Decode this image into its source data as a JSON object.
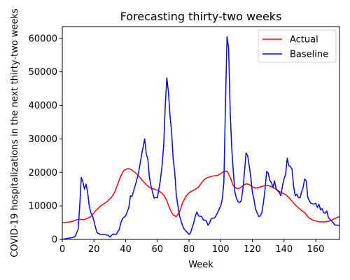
{
  "chart_data": {
    "type": "line",
    "title": "Forecasting thirty-two weeks",
    "xlabel": "Week",
    "ylabel": "COVID-19 hospitalizations in the next thirty-two weeks",
    "xlim": [
      0,
      175
    ],
    "ylim": [
      0,
      63500
    ],
    "xticks": [
      0,
      20,
      40,
      60,
      80,
      100,
      120,
      140,
      160
    ],
    "yticks": [
      0,
      10000,
      20000,
      30000,
      40000,
      50000,
      60000
    ],
    "legend_position": "top-right",
    "grid": false,
    "series": [
      {
        "name": "Actual",
        "color": "#ff0000",
        "points": [
          [
            0,
            5000
          ],
          [
            5,
            5200
          ],
          [
            10,
            6000
          ],
          [
            14,
            5900
          ],
          [
            18,
            6800
          ],
          [
            21,
            8500
          ],
          [
            24,
            9900
          ],
          [
            28,
            11200
          ],
          [
            31,
            12500
          ],
          [
            33,
            14000
          ],
          [
            35,
            16500
          ],
          [
            37,
            19000
          ],
          [
            39,
            20600
          ],
          [
            41,
            21100
          ],
          [
            43,
            21000
          ],
          [
            45,
            20300
          ],
          [
            47,
            19600
          ],
          [
            49,
            18500
          ],
          [
            52,
            16800
          ],
          [
            55,
            15500
          ],
          [
            58,
            15000
          ],
          [
            61,
            14500
          ],
          [
            64,
            13300
          ],
          [
            66,
            11500
          ],
          [
            68,
            9000
          ],
          [
            70,
            7300
          ],
          [
            72,
            6800
          ],
          [
            74,
            8200
          ],
          [
            76,
            11000
          ],
          [
            78,
            12800
          ],
          [
            80,
            13900
          ],
          [
            83,
            14700
          ],
          [
            86,
            15600
          ],
          [
            88,
            17000
          ],
          [
            90,
            18000
          ],
          [
            92,
            18500
          ],
          [
            95,
            18900
          ],
          [
            98,
            19100
          ],
          [
            100,
            19600
          ],
          [
            102,
            20300
          ],
          [
            104,
            20400
          ],
          [
            106,
            18500
          ],
          [
            108,
            16000
          ],
          [
            110,
            15200
          ],
          [
            112,
            15300
          ],
          [
            114,
            16000
          ],
          [
            116,
            16600
          ],
          [
            118,
            16400
          ],
          [
            120,
            15700
          ],
          [
            122,
            15300
          ],
          [
            124,
            15500
          ],
          [
            126,
            15800
          ],
          [
            128,
            16000
          ],
          [
            130,
            16100
          ],
          [
            132,
            15700
          ],
          [
            135,
            15000
          ],
          [
            138,
            14000
          ],
          [
            141,
            13400
          ],
          [
            144,
            12000
          ],
          [
            147,
            10300
          ],
          [
            150,
            9000
          ],
          [
            153,
            8000
          ],
          [
            156,
            6300
          ],
          [
            159,
            5600
          ],
          [
            162,
            5300
          ],
          [
            165,
            5200
          ],
          [
            168,
            5400
          ],
          [
            171,
            6000
          ],
          [
            175,
            6800
          ]
        ]
      },
      {
        "name": "Baseline",
        "color": "#0000ff",
        "points": [
          [
            0,
            0
          ],
          [
            3,
            300
          ],
          [
            6,
            500
          ],
          [
            8,
            800
          ],
          [
            10,
            3000
          ],
          [
            11,
            10000
          ],
          [
            12,
            18500
          ],
          [
            13,
            17200
          ],
          [
            14,
            15000
          ],
          [
            15,
            16500
          ],
          [
            16,
            14000
          ],
          [
            17,
            10000
          ],
          [
            18,
            8000
          ],
          [
            19,
            7000
          ],
          [
            20,
            5500
          ],
          [
            21,
            3500
          ],
          [
            22,
            2000
          ],
          [
            24,
            1500
          ],
          [
            27,
            1400
          ],
          [
            29,
            1200
          ],
          [
            30,
            700
          ],
          [
            32,
            1600
          ],
          [
            34,
            1500
          ],
          [
            36,
            3000
          ],
          [
            37,
            5000
          ],
          [
            38,
            6200
          ],
          [
            40,
            7000
          ],
          [
            42,
            9500
          ],
          [
            43,
            13000
          ],
          [
            44,
            12800
          ],
          [
            46,
            16000
          ],
          [
            48,
            19500
          ],
          [
            50,
            25000
          ],
          [
            52,
            30000
          ],
          [
            53,
            25500
          ],
          [
            54,
            24000
          ],
          [
            55,
            18500
          ],
          [
            56,
            16000
          ],
          [
            57,
            14000
          ],
          [
            58,
            12300
          ],
          [
            59,
            12500
          ],
          [
            60,
            12400
          ],
          [
            61,
            15000
          ],
          [
            62,
            18000
          ],
          [
            63,
            22000
          ],
          [
            64,
            28000
          ],
          [
            65,
            40000
          ],
          [
            66,
            48200
          ],
          [
            67,
            44000
          ],
          [
            68,
            37000
          ],
          [
            69,
            32000
          ],
          [
            70,
            24000
          ],
          [
            71,
            20000
          ],
          [
            72,
            13000
          ],
          [
            73,
            10000
          ],
          [
            74,
            7000
          ],
          [
            75,
            5500
          ],
          [
            76,
            4000
          ],
          [
            77,
            3000
          ],
          [
            78,
            2500
          ],
          [
            79,
            2000
          ],
          [
            80,
            1500
          ],
          [
            81,
            2000
          ],
          [
            82,
            3500
          ],
          [
            83,
            5000
          ],
          [
            84,
            7000
          ],
          [
            85,
            8200
          ],
          [
            86,
            7000
          ],
          [
            88,
            6800
          ],
          [
            89,
            5800
          ],
          [
            90,
            5700
          ],
          [
            91,
            5500
          ],
          [
            92,
            4200
          ],
          [
            93,
            5000
          ],
          [
            94,
            6200
          ],
          [
            96,
            6400
          ],
          [
            97,
            7000
          ],
          [
            98,
            8000
          ],
          [
            99,
            9000
          ],
          [
            100,
            10000
          ],
          [
            101,
            12000
          ],
          [
            102,
            17000
          ],
          [
            103,
            40000
          ],
          [
            104,
            60500
          ],
          [
            105,
            57000
          ],
          [
            106,
            38000
          ],
          [
            107,
            27000
          ],
          [
            108,
            20000
          ],
          [
            109,
            14000
          ],
          [
            110,
            12200
          ],
          [
            111,
            11200
          ],
          [
            112,
            11000
          ],
          [
            113,
            11600
          ],
          [
            114,
            15000
          ],
          [
            115,
            20000
          ],
          [
            116,
            25800
          ],
          [
            117,
            25000
          ],
          [
            118,
            22000
          ],
          [
            119,
            18500
          ],
          [
            120,
            14000
          ],
          [
            121,
            12000
          ],
          [
            122,
            9000
          ],
          [
            123,
            8000
          ],
          [
            124,
            6800
          ],
          [
            125,
            7000
          ],
          [
            126,
            8000
          ],
          [
            127,
            11000
          ],
          [
            128,
            15000
          ],
          [
            129,
            20300
          ],
          [
            130,
            19800
          ],
          [
            131,
            17600
          ],
          [
            132,
            17000
          ],
          [
            133,
            15500
          ],
          [
            134,
            17500
          ],
          [
            135,
            15000
          ],
          [
            136,
            14500
          ],
          [
            137,
            14000
          ],
          [
            138,
            13000
          ],
          [
            139,
            16000
          ],
          [
            140,
            18000
          ],
          [
            141,
            19500
          ],
          [
            142,
            24200
          ],
          [
            143,
            22000
          ],
          [
            144,
            21800
          ],
          [
            145,
            21000
          ],
          [
            146,
            16000
          ],
          [
            147,
            13000
          ],
          [
            148,
            13500
          ],
          [
            149,
            12500
          ],
          [
            150,
            12400
          ],
          [
            151,
            14000
          ],
          [
            152,
            15500
          ],
          [
            153,
            18000
          ],
          [
            154,
            17500
          ],
          [
            155,
            12500
          ],
          [
            156,
            11500
          ],
          [
            157,
            10800
          ],
          [
            159,
            10500
          ],
          [
            160,
            10800
          ],
          [
            161,
            9500
          ],
          [
            162,
            10500
          ],
          [
            163,
            8800
          ],
          [
            164,
            9200
          ],
          [
            165,
            8000
          ],
          [
            166,
            7800
          ],
          [
            167,
            8500
          ],
          [
            168,
            6500
          ],
          [
            169,
            6000
          ],
          [
            171,
            5000
          ],
          [
            172,
            4300
          ],
          [
            175,
            4200
          ]
        ]
      }
    ]
  }
}
